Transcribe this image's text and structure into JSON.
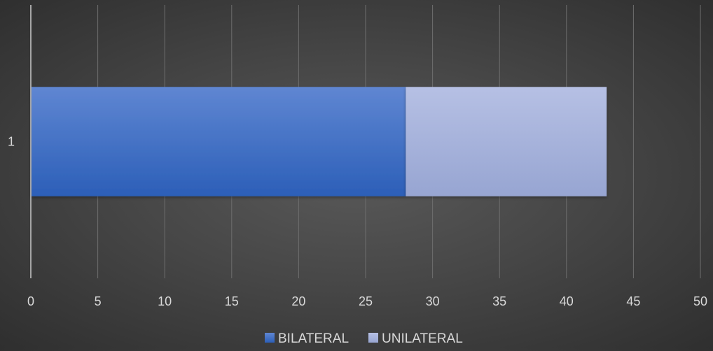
{
  "chart_data": {
    "type": "bar",
    "orientation": "horizontal",
    "stacked": true,
    "categories": [
      "1"
    ],
    "series": [
      {
        "name": "BILATERAL",
        "values": [
          28
        ],
        "color": "#3a6bc9"
      },
      {
        "name": "UNILATERAL",
        "values": [
          15
        ],
        "color": "#a8b4dd"
      }
    ],
    "xticks": [
      "0",
      "5",
      "10",
      "15",
      "20",
      "25",
      "30",
      "35",
      "40",
      "45",
      "50"
    ],
    "xlim": [
      0,
      50
    ],
    "title": "",
    "xlabel": "",
    "ylabel": "",
    "grid": true,
    "legend_position": "bottom"
  }
}
